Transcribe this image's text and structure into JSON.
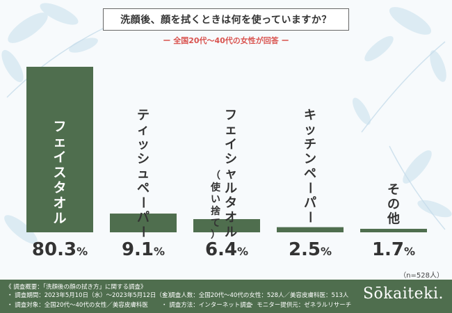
{
  "header": {
    "title": "洗顔後、顔を拭くときは何を使っていますか？",
    "subtitle": "ー 全国20代〜40代の女性が回答 ー"
  },
  "chart_data": {
    "type": "bar",
    "title": "洗顔後、顔を拭くときは何を使っていますか？",
    "subtitle": "全国20代〜40代の女性が回答",
    "categories": [
      "フェイスタオル",
      "ティッシュペーパー",
      "フェイシャルタオル（使い捨て）",
      "キッチンペーパー",
      "その他"
    ],
    "labels": [
      {
        "main": "フェイスタオル",
        "sub": ""
      },
      {
        "main": "ティッシュペーパー",
        "sub": ""
      },
      {
        "main": "フェイシャルタオル",
        "sub": "（使い捨て）"
      },
      {
        "main": "キッチンペーパー",
        "sub": ""
      },
      {
        "main": "その他",
        "sub": ""
      }
    ],
    "values": [
      80.3,
      9.1,
      6.4,
      2.5,
      1.7
    ],
    "value_labels": [
      "80.3%",
      "9.1%",
      "6.4%",
      "2.5%",
      "1.7%"
    ],
    "ylim": [
      0,
      80.3
    ],
    "unit": "%",
    "bar_color": "#4f6e4e",
    "grid": false,
    "legend": "none"
  },
  "sample_size": "（n=528人）",
  "footer": {
    "survey_title": "《 調査概要：「洗顔後の顔の拭き方」に関する調査》",
    "period": "・ 調査期間：2023年5月10日（水）〜2023年5月12日（金）",
    "respondents": "・ 調査人数：全国20代〜40代の女性：528人／美容皮膚科医：513人",
    "target": "・ 調査対象：全国20代〜40代の女性／美容皮膚科医",
    "method": "・ 調査方法：インターネット調査",
    "monitor": "・ モニター提供元：ゼネラルリサーチ",
    "logo": "Sōkaiteki."
  },
  "colors": {
    "bar": "#4f6e4e",
    "accent": "#d9534f",
    "footer": "#4f6e4e",
    "leaf": "#cfe3ef"
  }
}
